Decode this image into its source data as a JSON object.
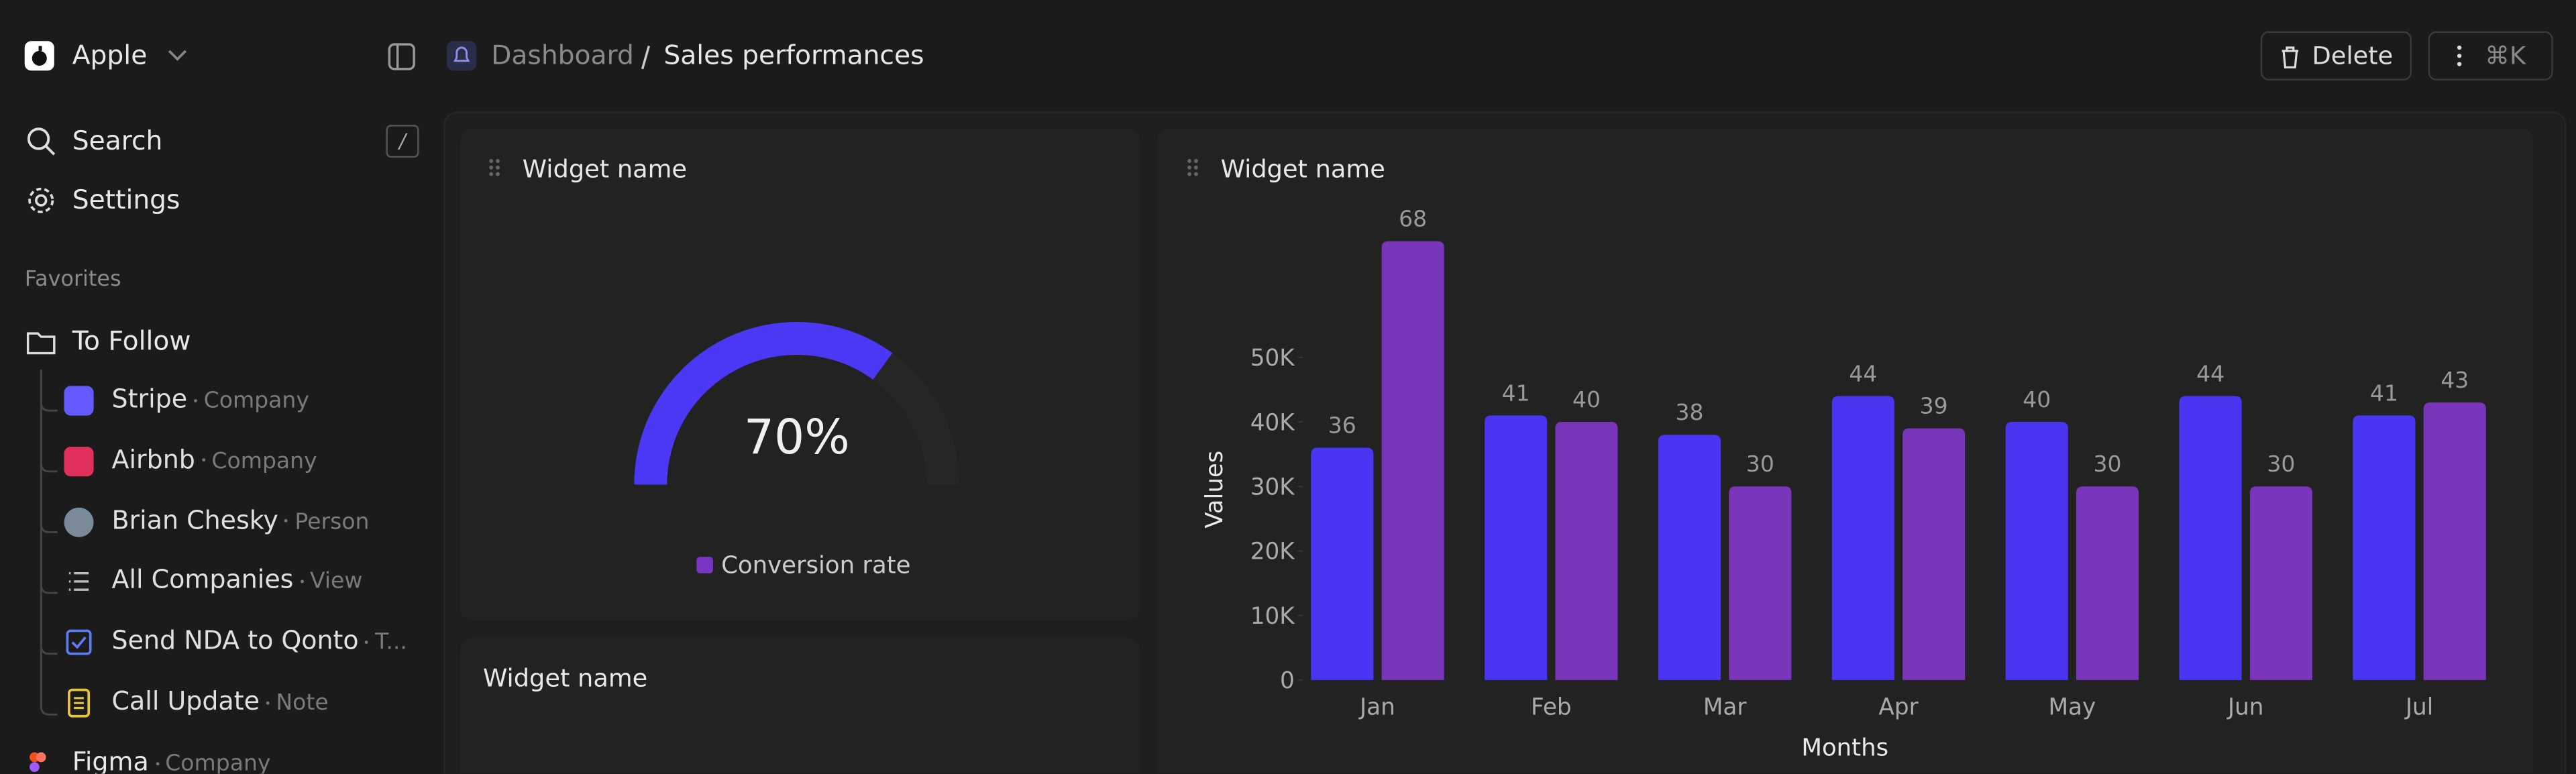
{
  "sidebar": {
    "workspace": "Apple",
    "search": "Search",
    "search_shortcut": "/",
    "settings": "Settings",
    "favorites_title": "Favorites",
    "folder": "To Follow",
    "items": [
      {
        "label": "Stripe",
        "meta": "Company"
      },
      {
        "label": "Airbnb",
        "meta": "Company"
      },
      {
        "label": "Brian Chesky",
        "meta": "Person"
      },
      {
        "label": "All Companies",
        "meta": "View"
      },
      {
        "label": "Send NDA to Qonto",
        "meta": "T..."
      },
      {
        "label": "Call Update",
        "meta": "Note"
      }
    ],
    "next_item": {
      "label": "Figma",
      "meta": "Company"
    }
  },
  "header": {
    "breadcrumb": [
      "Dashboard",
      "Sales performances"
    ],
    "delete": "Delete",
    "shortcut": "⌘K"
  },
  "widgets": [
    "Widget name",
    "Widget name",
    "Widget name"
  ],
  "chart_data": [
    {
      "type": "gauge",
      "ylim": [
        0,
        100
      ],
      "series": [
        {
          "name": "Conversion rate",
          "color": "#7b35c4",
          "values": [
            70
          ],
          "value_labels": [
            "70%"
          ]
        }
      ],
      "gauge_color": "#4b38f5"
    },
    {
      "type": "bar",
      "x_label": "Months",
      "y_label": "Values",
      "categories": [
        "Jan",
        "Feb",
        "Mar",
        "Apr",
        "May",
        "Jun",
        "Jul"
      ],
      "series": [
        {
          "color": "#4a36f2",
          "values": [
            36000,
            41000,
            38000,
            44000,
            40000,
            44000,
            41000
          ],
          "value_labels": [
            "36",
            "41",
            "38",
            "44",
            "40",
            "44",
            "41"
          ]
        },
        {
          "color": "#7a36ba",
          "values": [
            68000,
            40000,
            30000,
            39000,
            30000,
            30000,
            43000
          ],
          "value_labels": [
            "68",
            "40",
            "30",
            "39",
            "30",
            "30",
            "43"
          ]
        }
      ],
      "ylim": [
        0,
        70000
      ],
      "yticks": [
        0,
        {
          "value": 10000,
          "label": "10K"
        },
        {
          "value": 20000,
          "label": "20K"
        },
        {
          "value": 30000,
          "label": "30K"
        },
        {
          "value": 40000,
          "label": "40K"
        },
        {
          "value": 50000,
          "label": "50K"
        }
      ]
    }
  ]
}
